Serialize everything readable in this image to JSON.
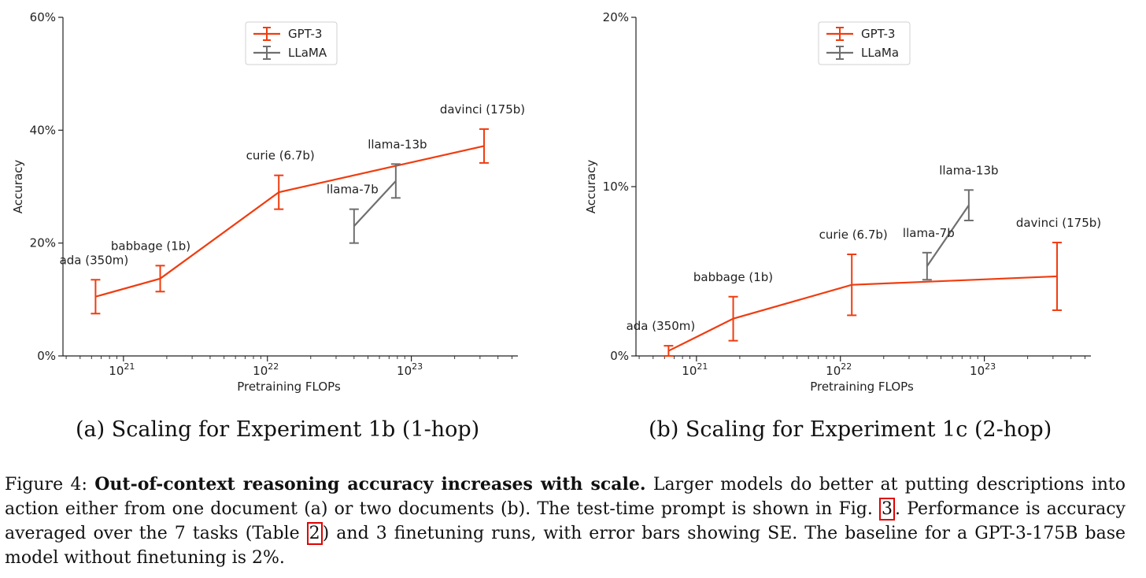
{
  "chart_data": [
    {
      "type": "line",
      "subcaption": "(a) Scaling for Experiment 1b (1-hop)",
      "xlabel": "Pretraining FLOPs",
      "ylabel": "Accuracy",
      "xscale": "log",
      "xlim": [
        3.8e+20,
        5.5e+23
      ],
      "ylim": [
        0,
        60
      ],
      "yticks": [
        0,
        20,
        40,
        60
      ],
      "ytick_labels": [
        "0%",
        "20%",
        "40%",
        "60%"
      ],
      "xtick_labels": [
        "10",
        "10",
        "10"
      ],
      "xtick_exponents": [
        "21",
        "22",
        "23"
      ],
      "xticks": [
        1e+21,
        1e+22,
        1e+23
      ],
      "legend_position": "top-center",
      "grid": false,
      "series": [
        {
          "name": "GPT-3",
          "color": "#f03c0f",
          "points": [
            {
              "label": "ada (350m)",
              "x": 6.4e+20,
              "y": 10.5,
              "err": 3.0
            },
            {
              "label": "babbage (1b)",
              "x": 1.8e+21,
              "y": 13.7,
              "err": 2.3
            },
            {
              "label": "curie (6.7b)",
              "x": 1.2e+22,
              "y": 29.0,
              "err": 3.0
            },
            {
              "label": "davinci (175b)",
              "x": 3.2e+23,
              "y": 37.2,
              "err": 3.0
            }
          ]
        },
        {
          "name": "LLaMA",
          "color": "#6f6f6f",
          "points": [
            {
              "label": "llama-7b",
              "x": 4e+22,
              "y": 23.0,
              "err": 3.0
            },
            {
              "label": "llama-13b",
              "x": 7.8e+22,
              "y": 31.0,
              "err": 3.0
            }
          ]
        }
      ]
    },
    {
      "type": "line",
      "subcaption": "(b) Scaling for Experiment 1c (2-hop)",
      "xlabel": "Pretraining FLOPs",
      "ylabel": "Accuracy",
      "xscale": "log",
      "xlim": [
        3.8e+20,
        5.5e+23
      ],
      "ylim": [
        0,
        20
      ],
      "yticks": [
        0,
        10,
        20
      ],
      "ytick_labels": [
        "0%",
        "10%",
        "20%"
      ],
      "xtick_labels": [
        "10",
        "10",
        "10"
      ],
      "xtick_exponents": [
        "21",
        "22",
        "23"
      ],
      "xticks": [
        1e+21,
        1e+22,
        1e+23
      ],
      "legend_position": "top-center",
      "grid": false,
      "series": [
        {
          "name": "GPT-3",
          "color": "#f03c0f",
          "points": [
            {
              "label": "ada (350m)",
              "x": 6.4e+20,
              "y": 0.3,
              "err": 0.3
            },
            {
              "label": "babbage (1b)",
              "x": 1.8e+21,
              "y": 2.2,
              "err": 1.3
            },
            {
              "label": "curie (6.7b)",
              "x": 1.2e+22,
              "y": 4.2,
              "err": 1.8
            },
            {
              "label": "davinci (175b)",
              "x": 3.2e+23,
              "y": 4.7,
              "err": 2.0
            }
          ]
        },
        {
          "name": "LLaMa",
          "color": "#6f6f6f",
          "points": [
            {
              "label": "llama-7b",
              "x": 4e+22,
              "y": 5.3,
              "err": 0.8
            },
            {
              "label": "llama-13b",
              "x": 7.8e+22,
              "y": 8.9,
              "err": 0.9
            }
          ]
        }
      ]
    }
  ],
  "caption": {
    "prefix": "Figure 4: ",
    "bold": "Out-of-context reasoning accuracy increases with scale.",
    "text1": " Larger models do better at putting descriptions into action either from one document (a) or two documents (b). The test-time prompt is shown in Fig. ",
    "ref1": "3",
    "text2": ". Performance is accuracy averaged over the 7 tasks (Table ",
    "ref2": "2",
    "text3": ") and 3 finetuning runs, with error bars showing SE. The baseline for a GPT-3-175B base model without finetuning is 2%."
  }
}
